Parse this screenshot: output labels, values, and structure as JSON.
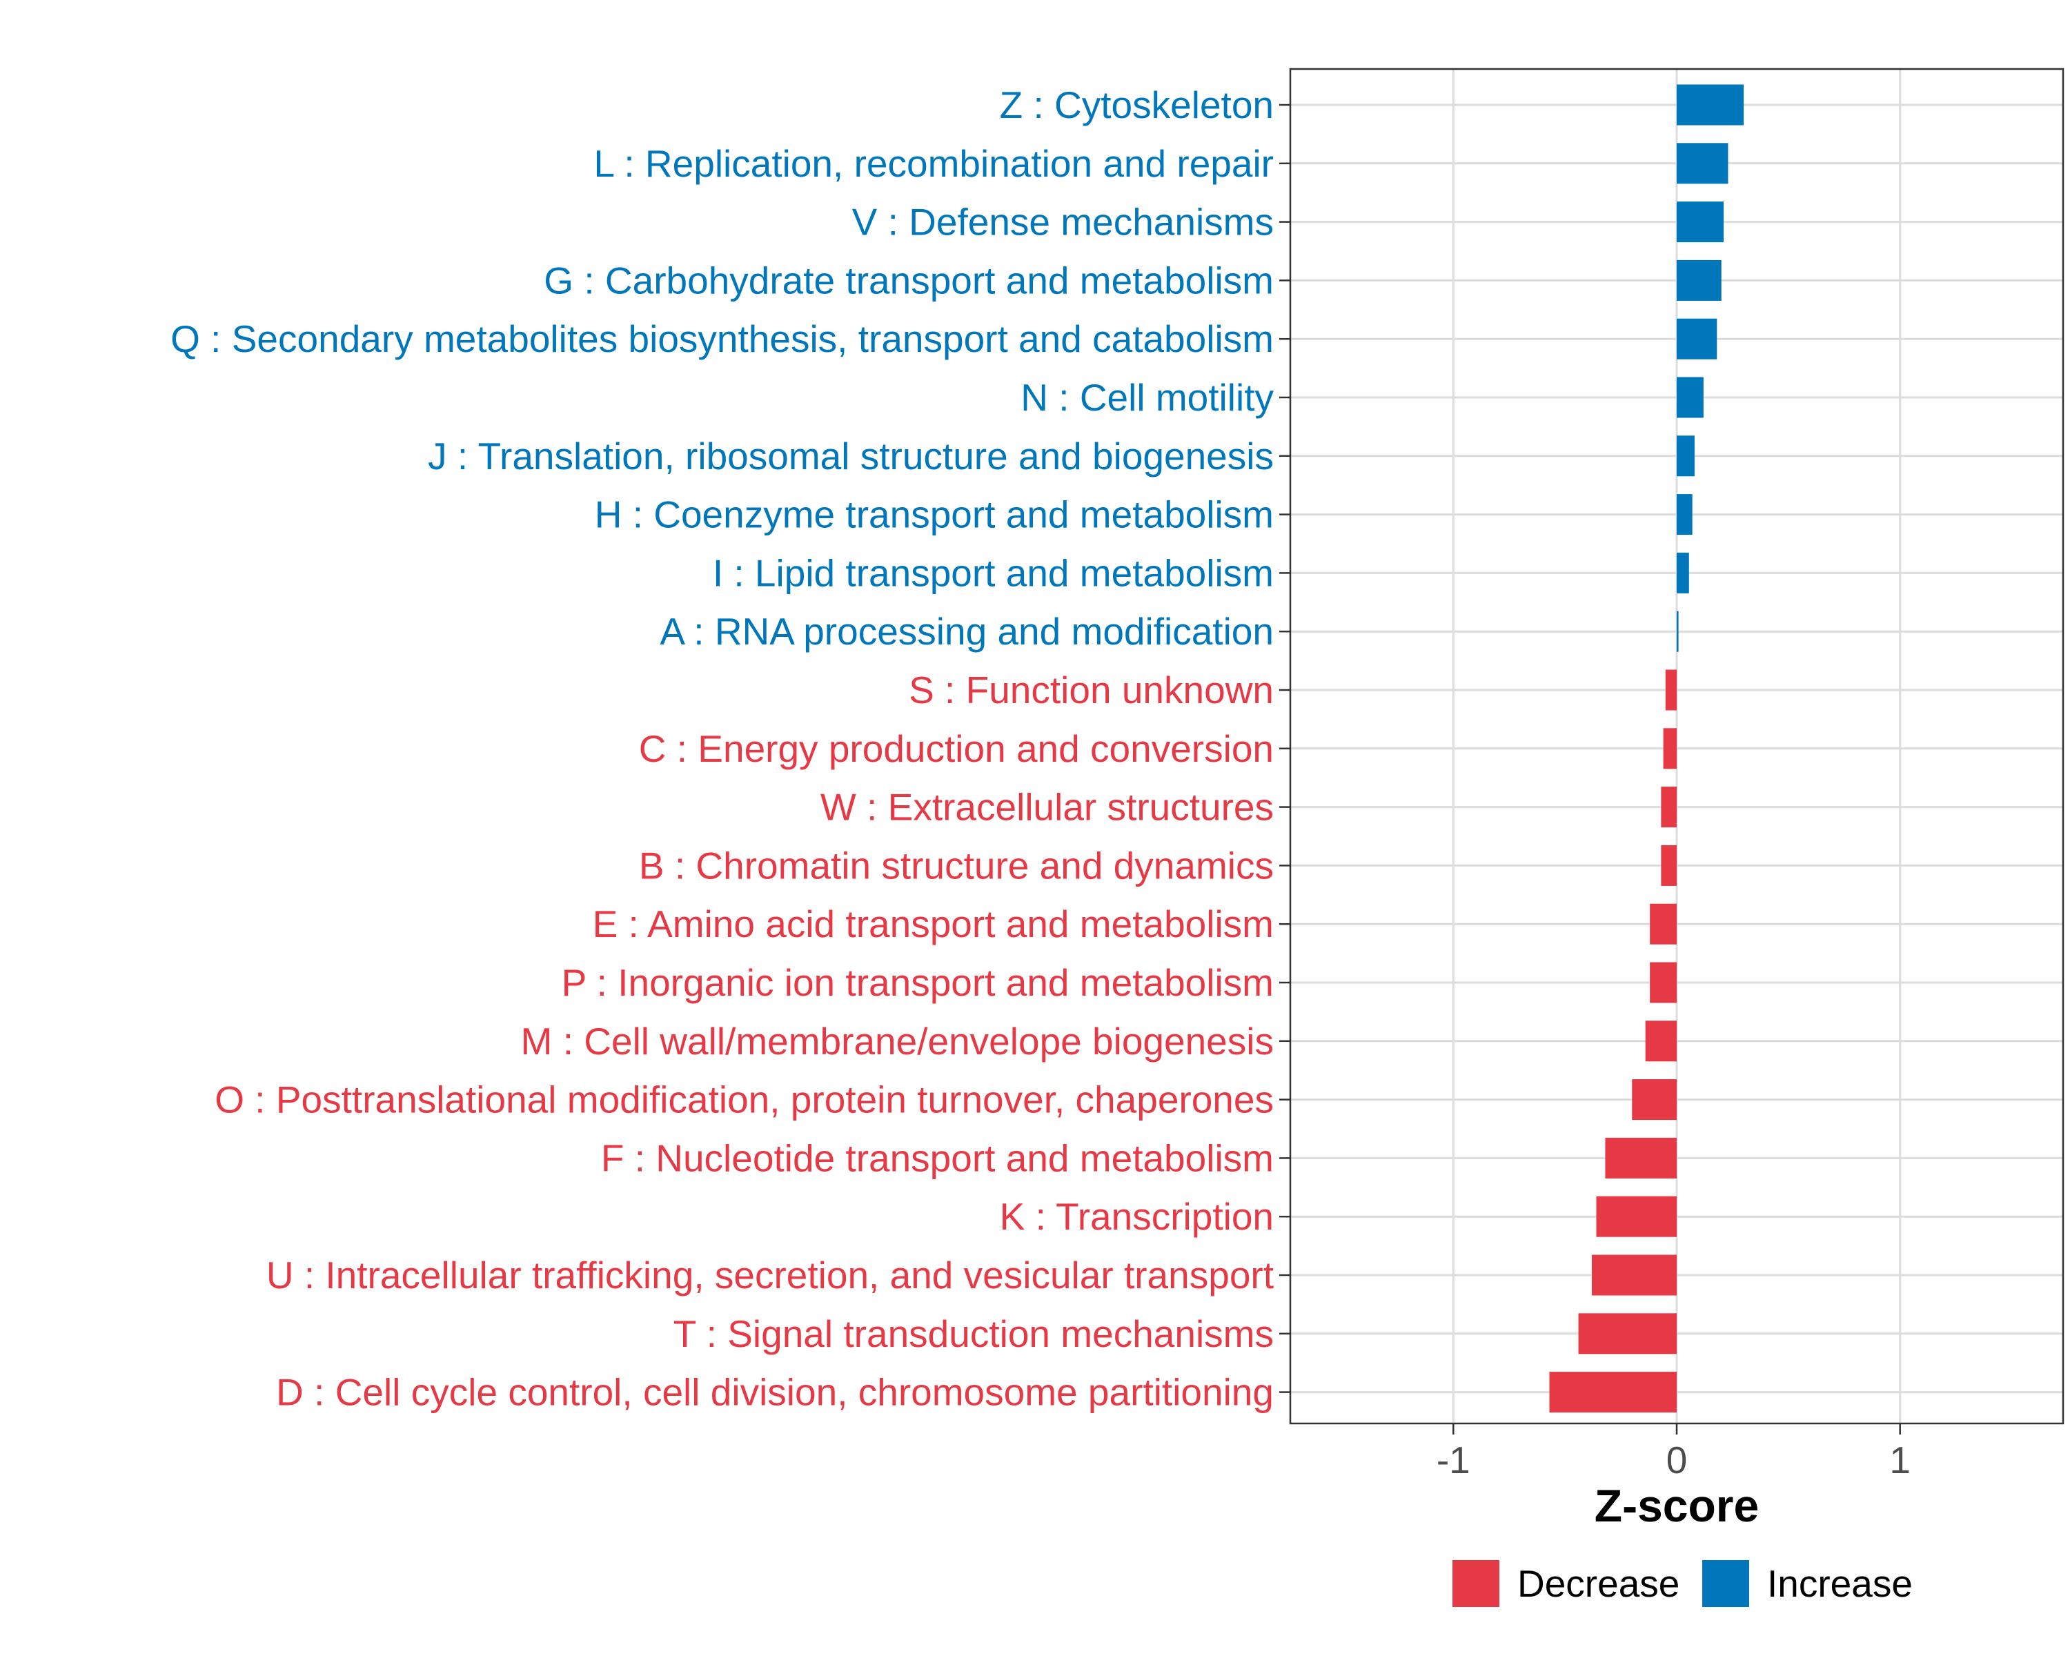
{
  "chart_data": {
    "type": "bar",
    "orientation": "horizontal",
    "title": "",
    "xlabel": "Z-score",
    "ylabel": "",
    "xlim": [
      -1.73,
      1.73
    ],
    "xticks": [
      {
        "value": -1,
        "label": "-1"
      },
      {
        "value": 0,
        "label": "0"
      },
      {
        "value": 1,
        "label": "1"
      }
    ],
    "grid": true,
    "colors": {
      "Decrease": "#E63946",
      "Increase": "#0077BB"
    },
    "legend": {
      "position": "bottom",
      "entries": [
        {
          "key": "Decrease",
          "label": "Decrease",
          "color": "#E63946"
        },
        {
          "key": "Increase",
          "label": "Increase",
          "color": "#0077BB"
        }
      ]
    },
    "categories": [
      {
        "label": "Z : Cytoskeleton",
        "value": 0.3,
        "group": "Increase"
      },
      {
        "label": "L : Replication, recombination and repair",
        "value": 0.23,
        "group": "Increase"
      },
      {
        "label": "V : Defense mechanisms",
        "value": 0.21,
        "group": "Increase"
      },
      {
        "label": "G : Carbohydrate transport and metabolism",
        "value": 0.2,
        "group": "Increase"
      },
      {
        "label": "Q : Secondary metabolites biosynthesis, transport and catabolism",
        "value": 0.18,
        "group": "Increase"
      },
      {
        "label": "N : Cell motility",
        "value": 0.12,
        "group": "Increase"
      },
      {
        "label": "J : Translation, ribosomal structure and biogenesis",
        "value": 0.08,
        "group": "Increase"
      },
      {
        "label": "H : Coenzyme transport and metabolism",
        "value": 0.07,
        "group": "Increase"
      },
      {
        "label": "I : Lipid transport and metabolism",
        "value": 0.055,
        "group": "Increase"
      },
      {
        "label": "A : RNA processing and modification",
        "value": 0.008,
        "group": "Increase"
      },
      {
        "label": "S : Function unknown",
        "value": -0.05,
        "group": "Decrease"
      },
      {
        "label": "C : Energy production and conversion",
        "value": -0.06,
        "group": "Decrease"
      },
      {
        "label": "W : Extracellular structures",
        "value": -0.07,
        "group": "Decrease"
      },
      {
        "label": "B : Chromatin structure and dynamics",
        "value": -0.07,
        "group": "Decrease"
      },
      {
        "label": "E : Amino acid transport and metabolism",
        "value": -0.12,
        "group": "Decrease"
      },
      {
        "label": "P : Inorganic ion transport and metabolism",
        "value": -0.12,
        "group": "Decrease"
      },
      {
        "label": "M : Cell wall/membrane/envelope biogenesis",
        "value": -0.14,
        "group": "Decrease"
      },
      {
        "label": "O : Posttranslational modification, protein turnover, chaperones",
        "value": -0.2,
        "group": "Decrease"
      },
      {
        "label": "F : Nucleotide transport and metabolism",
        "value": -0.32,
        "group": "Decrease"
      },
      {
        "label": "K : Transcription",
        "value": -0.36,
        "group": "Decrease"
      },
      {
        "label": "U : Intracellular trafficking, secretion, and vesicular transport",
        "value": -0.38,
        "group": "Decrease"
      },
      {
        "label": "T : Signal transduction mechanisms",
        "value": -0.44,
        "group": "Decrease"
      },
      {
        "label": "D : Cell cycle control, cell division, chromosome partitioning",
        "value": -0.57,
        "group": "Decrease"
      }
    ]
  }
}
